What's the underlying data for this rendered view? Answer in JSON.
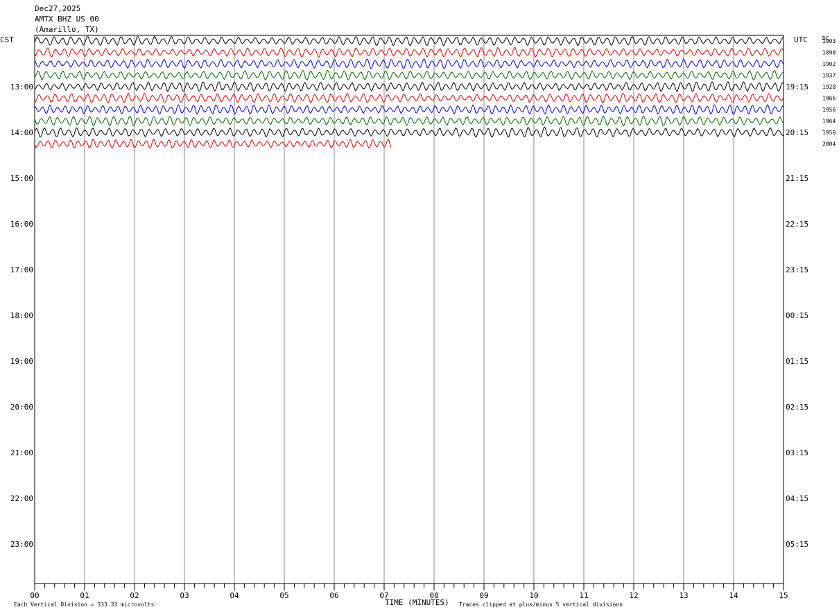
{
  "header": {
    "date": "Dec27,2025",
    "station": "AMTX BHZ US 00",
    "location": "(Amarillo, TX)"
  },
  "left_zone": "CST",
  "right_zone": "UTC",
  "dc_label": "DC",
  "chart_data": {
    "type": "line",
    "title": "",
    "xlabel": "TIME (MINUTES)",
    "x_ticks": [
      "00",
      "01",
      "02",
      "03",
      "04",
      "05",
      "06",
      "07",
      "08",
      "09",
      "10",
      "11",
      "12",
      "13",
      "14",
      "15"
    ],
    "xlim": [
      0,
      15
    ],
    "left_hour_labels": [
      "13:00",
      "14:00",
      "15:00",
      "16:00",
      "17:00",
      "18:00",
      "19:00",
      "20:00",
      "21:00",
      "22:00",
      "23:00"
    ],
    "right_hour_labels": [
      "19:15",
      "20:15",
      "21:15",
      "22:15",
      "23:15",
      "00:15",
      "01:15",
      "02:15",
      "03:15",
      "04:15",
      "05:15"
    ],
    "series_colors": [
      "#000000",
      "#dd0000",
      "#0000dd",
      "#006600"
    ],
    "traces": [
      {
        "dc": "1903",
        "color": "#000000",
        "end_minute": 15
      },
      {
        "dc": "1898",
        "color": "#dd0000",
        "end_minute": 15
      },
      {
        "dc": "1902",
        "color": "#0000dd",
        "end_minute": 15
      },
      {
        "dc": "1937",
        "color": "#006600",
        "end_minute": 15
      },
      {
        "dc": "1928",
        "color": "#000000",
        "end_minute": 15
      },
      {
        "dc": "1966",
        "color": "#dd0000",
        "end_minute": 15
      },
      {
        "dc": "1956",
        "color": "#0000dd",
        "end_minute": 15
      },
      {
        "dc": "1964",
        "color": "#006600",
        "end_minute": 15
      },
      {
        "dc": "1950",
        "color": "#000000",
        "end_minute": 15
      },
      {
        "dc": "2004",
        "color": "#dd0000",
        "end_minute": 7.15
      }
    ]
  },
  "footer": {
    "scale_note": "Each Vertical Division =  333.33 microvolts",
    "clip_note": "Traces clipped at plus/minus 5 vertical divisions"
  }
}
